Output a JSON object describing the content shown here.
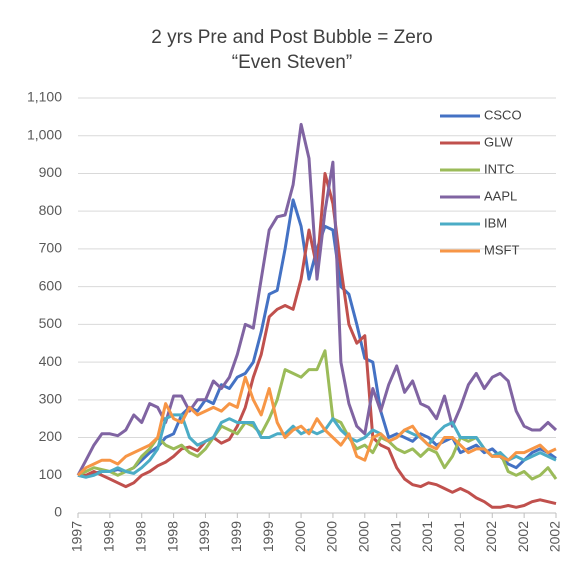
{
  "chart_data": {
    "type": "line",
    "title": "2 yrs Pre and Post Bubble = Zero",
    "subtitle": "“Even Steven”",
    "categories": [
      "1997",
      null,
      null,
      null,
      "1998",
      null,
      null,
      null,
      "1998",
      null,
      null,
      null,
      "1998",
      null,
      null,
      null,
      "1999",
      null,
      null,
      null,
      "1999",
      null,
      null,
      null,
      "1999",
      null,
      null,
      null,
      "2000",
      null,
      null,
      null,
      "2000",
      null,
      null,
      null,
      "2000",
      null,
      null,
      null,
      "2001",
      null,
      null,
      null,
      "2001",
      null,
      null,
      null,
      "2001",
      null,
      null,
      null,
      "2002",
      null,
      null,
      null,
      "2002",
      null,
      null,
      null,
      "2002"
    ],
    "ylim": [
      0,
      1100
    ],
    "yticks": [
      0,
      100,
      200,
      300,
      400,
      500,
      600,
      700,
      800,
      900,
      {
        "value": 1000,
        "label": "1,000"
      },
      {
        "value": 1100,
        "label": "1,100"
      }
    ],
    "grid": true,
    "legend": "upper right",
    "series": [
      {
        "name": "CSCO",
        "color": "#4472c4",
        "values": [
          100,
          95,
          105,
          110,
          110,
          115,
          110,
          120,
          140,
          160,
          175,
          200,
          210,
          260,
          280,
          270,
          300,
          290,
          340,
          330,
          360,
          370,
          400,
          480,
          580,
          590,
          700,
          830,
          760,
          620,
          700,
          760,
          750,
          600,
          580,
          500,
          410,
          400,
          270,
          200,
          210,
          200,
          190,
          210,
          200,
          180,
          190,
          200,
          160,
          170,
          180,
          160,
          170,
          150,
          130,
          120,
          140,
          160,
          170,
          160,
          145
        ]
      },
      {
        "name": "GLW",
        "color": "#c0504d",
        "values": [
          100,
          100,
          110,
          100,
          90,
          80,
          70,
          80,
          100,
          110,
          125,
          135,
          150,
          170,
          175,
          165,
          190,
          200,
          185,
          195,
          230,
          280,
          360,
          420,
          520,
          540,
          550,
          540,
          620,
          750,
          650,
          900,
          820,
          650,
          500,
          450,
          470,
          200,
          180,
          170,
          120,
          90,
          75,
          70,
          80,
          75,
          65,
          55,
          65,
          55,
          40,
          30,
          15,
          15,
          20,
          15,
          20,
          30,
          35,
          30,
          25
        ]
      },
      {
        "name": "INTC",
        "color": "#9bbb59",
        "values": [
          100,
          110,
          120,
          115,
          110,
          100,
          110,
          120,
          150,
          170,
          200,
          180,
          170,
          180,
          160,
          150,
          170,
          200,
          230,
          220,
          210,
          240,
          230,
          210,
          250,
          300,
          380,
          370,
          360,
          380,
          380,
          430,
          250,
          240,
          200,
          170,
          180,
          160,
          200,
          190,
          170,
          160,
          170,
          150,
          170,
          160,
          120,
          150,
          200,
          190,
          200,
          170,
          150,
          160,
          110,
          100,
          110,
          90,
          100,
          120,
          90
        ]
      },
      {
        "name": "AAPL",
        "color": "#8064a2",
        "values": [
          100,
          140,
          180,
          210,
          210,
          205,
          220,
          260,
          240,
          290,
          280,
          240,
          310,
          310,
          270,
          300,
          300,
          350,
          330,
          360,
          420,
          500,
          490,
          620,
          750,
          785,
          790,
          870,
          1030,
          940,
          620,
          800,
          930,
          400,
          290,
          230,
          210,
          330,
          270,
          340,
          390,
          320,
          350,
          290,
          280,
          250,
          310,
          230,
          280,
          340,
          370,
          330,
          360,
          370,
          350,
          270,
          230,
          220,
          220,
          240,
          220
        ]
      },
      {
        "name": "IBM",
        "color": "#4bacc6",
        "values": [
          100,
          95,
          100,
          110,
          110,
          120,
          110,
          105,
          120,
          140,
          170,
          250,
          260,
          260,
          200,
          180,
          190,
          200,
          240,
          250,
          240,
          240,
          240,
          200,
          200,
          210,
          210,
          230,
          210,
          220,
          210,
          220,
          250,
          220,
          200,
          190,
          200,
          220,
          210,
          190,
          200,
          220,
          210,
          200,
          180,
          210,
          230,
          240,
          200,
          200,
          200,
          170,
          150,
          160,
          140,
          150,
          140,
          150,
          160,
          150,
          140
        ]
      },
      {
        "name": "MSFT",
        "color": "#f79646",
        "values": [
          100,
          120,
          130,
          140,
          140,
          130,
          150,
          160,
          170,
          180,
          200,
          290,
          250,
          240,
          280,
          260,
          270,
          280,
          270,
          290,
          280,
          360,
          300,
          260,
          330,
          240,
          200,
          220,
          230,
          210,
          250,
          220,
          200,
          180,
          210,
          150,
          140,
          200,
          210,
          190,
          200,
          220,
          230,
          200,
          180,
          170,
          200,
          200,
          180,
          160,
          170,
          170,
          150,
          150,
          140,
          160,
          160,
          170,
          180,
          160,
          170
        ]
      }
    ]
  }
}
